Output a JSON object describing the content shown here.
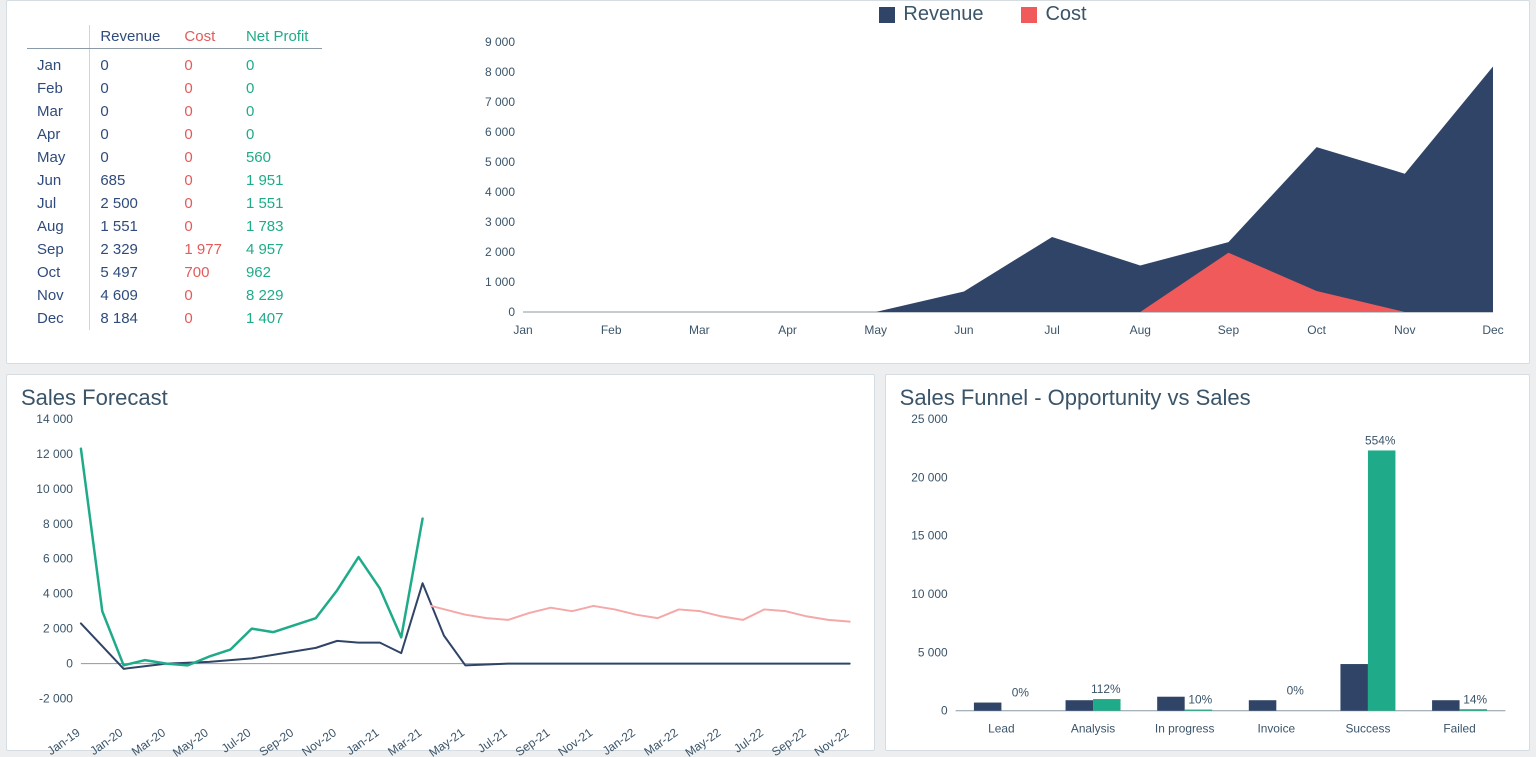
{
  "colors": {
    "revenue": "#2f4466",
    "cost": "#f05a5a",
    "netprofit": "#1fab89",
    "forecast_pink": "#f5a8a8",
    "text": "#3a5469",
    "grid": "#b7c2ca",
    "card_bg": "#ffffff",
    "page_bg": "#eceef0"
  },
  "top": {
    "legend": {
      "revenue_label": "Revenue",
      "cost_label": "Cost"
    },
    "table": {
      "headers": {
        "month": "",
        "revenue": "Revenue",
        "cost": "Cost",
        "net": "Net Profit"
      },
      "rows": [
        {
          "month": "Jan",
          "revenue": "0",
          "cost": "0",
          "net": "0"
        },
        {
          "month": "Feb",
          "revenue": "0",
          "cost": "0",
          "net": "0"
        },
        {
          "month": "Mar",
          "revenue": "0",
          "cost": "0",
          "net": "0"
        },
        {
          "month": "Apr",
          "revenue": "0",
          "cost": "0",
          "net": "0"
        },
        {
          "month": "May",
          "revenue": "0",
          "cost": "0",
          "net": "560"
        },
        {
          "month": "Jun",
          "revenue": "685",
          "cost": "0",
          "net": "1 951"
        },
        {
          "month": "Jul",
          "revenue": "2 500",
          "cost": "0",
          "net": "1 551"
        },
        {
          "month": "Aug",
          "revenue": "1 551",
          "cost": "0",
          "net": "1 783"
        },
        {
          "month": "Sep",
          "revenue": "2 329",
          "cost": "1 977",
          "net": "4 957"
        },
        {
          "month": "Oct",
          "revenue": "5 497",
          "cost": "700",
          "net": "962"
        },
        {
          "month": "Nov",
          "revenue": "4 609",
          "cost": "0",
          "net": "8 229"
        },
        {
          "month": "Dec",
          "revenue": "8 184",
          "cost": "0",
          "net": "1 407"
        }
      ]
    },
    "area_chart": {
      "type": "area",
      "x_labels": [
        "Jan",
        "Feb",
        "Mar",
        "Apr",
        "May",
        "Jun",
        "Jul",
        "Aug",
        "Sep",
        "Oct",
        "Nov",
        "Dec"
      ],
      "y_ticks": [
        0,
        1000,
        2000,
        3000,
        4000,
        5000,
        6000,
        7000,
        8000,
        9000
      ],
      "y_tick_labels": [
        "0",
        "1 000",
        "2 000",
        "3 000",
        "4 000",
        "5 000",
        "6 000",
        "7 000",
        "8 000",
        "9 000"
      ],
      "ylim": [
        0,
        9000
      ],
      "series": {
        "revenue": [
          0,
          0,
          0,
          0,
          0,
          685,
          2500,
          1551,
          2329,
          5497,
          4609,
          8184
        ],
        "cost": [
          0,
          0,
          0,
          0,
          0,
          0,
          0,
          0,
          1977,
          700,
          0,
          0
        ]
      }
    }
  },
  "forecast": {
    "title": "Sales Forecast",
    "type": "line",
    "ylim": [
      -2000,
      14000
    ],
    "y_ticks": [
      -2000,
      0,
      2000,
      4000,
      6000,
      8000,
      10000,
      12000,
      14000
    ],
    "y_tick_labels": [
      "-2 000",
      "0",
      "2 000",
      "4 000",
      "6 000",
      "8 000",
      "10 000",
      "12 000",
      "14 000"
    ],
    "x_labels": [
      "Jan-19",
      "Jan-20",
      "Mar-20",
      "May-20",
      "Jul-20",
      "Sep-20",
      "Nov-20",
      "Jan-21",
      "Mar-21",
      "May-21",
      "Jul-21",
      "Sep-21",
      "Nov-21",
      "Jan-22",
      "Mar-22",
      "May-22",
      "Jul-22",
      "Sep-22",
      "Nov-22"
    ],
    "series": {
      "navy": {
        "color": "#2f4466",
        "width": 2,
        "points": [
          [
            0,
            2300
          ],
          [
            1,
            -300
          ],
          [
            2,
            0
          ],
          [
            3,
            100
          ],
          [
            4,
            300
          ],
          [
            5,
            700
          ],
          [
            5.5,
            900
          ],
          [
            6,
            1300
          ],
          [
            6.5,
            1200
          ],
          [
            7,
            1200
          ],
          [
            7.5,
            600
          ],
          [
            8,
            4600
          ],
          [
            8.5,
            1600
          ],
          [
            9,
            -100
          ],
          [
            10,
            0
          ],
          [
            11,
            0
          ],
          [
            12,
            0
          ],
          [
            13,
            0
          ],
          [
            14,
            0
          ],
          [
            15,
            0
          ],
          [
            16,
            0
          ],
          [
            17,
            0
          ],
          [
            18,
            0
          ]
        ]
      },
      "green": {
        "color": "#1fab89",
        "width": 2.5,
        "points": [
          [
            0,
            12300
          ],
          [
            0.5,
            3000
          ],
          [
            1,
            -100
          ],
          [
            1.5,
            200
          ],
          [
            2,
            0
          ],
          [
            2.5,
            -100
          ],
          [
            3,
            400
          ],
          [
            3.5,
            800
          ],
          [
            4,
            2000
          ],
          [
            4.5,
            1800
          ],
          [
            5,
            2200
          ],
          [
            5.5,
            2600
          ],
          [
            6,
            4200
          ],
          [
            6.5,
            6100
          ],
          [
            7,
            4300
          ],
          [
            7.5,
            1500
          ],
          [
            8,
            8300
          ]
        ]
      },
      "pink": {
        "color": "#f5a8a8",
        "width": 2,
        "points": [
          [
            8.2,
            3300
          ],
          [
            9,
            2800
          ],
          [
            9.5,
            2600
          ],
          [
            10,
            2500
          ],
          [
            10.5,
            2900
          ],
          [
            11,
            3200
          ],
          [
            11.5,
            3000
          ],
          [
            12,
            3300
          ],
          [
            12.5,
            3100
          ],
          [
            13,
            2800
          ],
          [
            13.5,
            2600
          ],
          [
            14,
            3100
          ],
          [
            14.5,
            3000
          ],
          [
            15,
            2700
          ],
          [
            15.5,
            2500
          ],
          [
            16,
            3100
          ],
          [
            16.5,
            3000
          ],
          [
            17,
            2700
          ],
          [
            17.5,
            2500
          ],
          [
            18,
            2400
          ]
        ]
      }
    }
  },
  "funnel": {
    "title": "Sales Funnel - Opportunity vs Sales",
    "type": "bar",
    "ylim": [
      0,
      25000
    ],
    "y_ticks": [
      0,
      5000,
      10000,
      15000,
      20000,
      25000
    ],
    "y_tick_labels": [
      "0",
      "5 000",
      "10 000",
      "15 000",
      "20 000",
      "25 000"
    ],
    "categories": [
      "Lead",
      "Analysis",
      "In progress",
      "Invoice",
      "Success",
      "Failed"
    ],
    "series": {
      "navy": {
        "color": "#2f4466",
        "values": [
          700,
          900,
          1200,
          900,
          4000,
          900
        ]
      },
      "green": {
        "color": "#1fab89",
        "values": [
          0,
          1000,
          100,
          0,
          22300,
          130
        ]
      }
    },
    "labels": [
      "0%",
      "112%",
      "10%",
      "0%",
      "554%",
      "14%"
    ]
  }
}
